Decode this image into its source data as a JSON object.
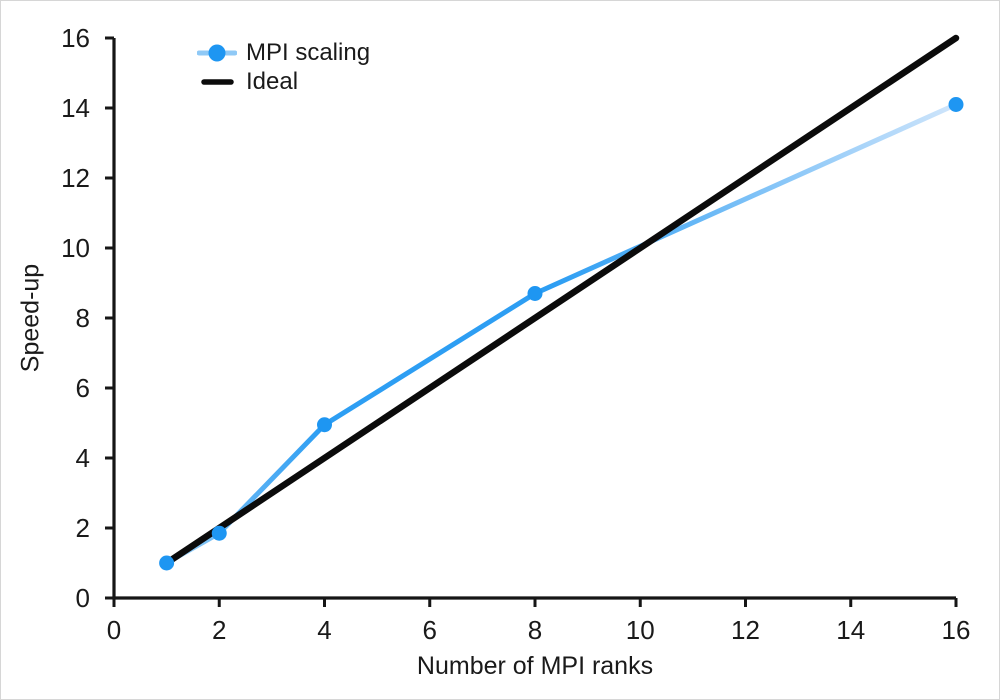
{
  "figure": {
    "background": "#ffffff",
    "border_color": "#d6d6d6"
  },
  "chart_data": {
    "type": "line",
    "title": "",
    "xlabel": "Number of MPI ranks",
    "ylabel": "Speed-up",
    "xlim": [
      0,
      16
    ],
    "ylim": [
      0,
      16
    ],
    "xticks": [
      0,
      2,
      4,
      6,
      8,
      10,
      12,
      14,
      16
    ],
    "yticks": [
      0,
      2,
      4,
      6,
      8,
      10,
      12,
      14,
      16
    ],
    "grid": false,
    "legend_position": "upper-left",
    "axis_color": "#161616",
    "tick_label_color": "#1a1a1a",
    "series": [
      {
        "name": "MPI scaling",
        "x": [
          1,
          2,
          4,
          8,
          16
        ],
        "y": [
          1.0,
          1.85,
          4.95,
          8.7,
          14.1
        ],
        "color": "#2d9ef3",
        "marker": "circle",
        "marker_color": "#1e96f2",
        "marker_radius": 7.5,
        "line_width": 5,
        "legend_line_color": "#8fc9f6",
        "gradient_stops": [
          {
            "offset": 0,
            "color": "#9fd2f7"
          },
          {
            "offset": 0.08,
            "color": "#69b8f4"
          },
          {
            "offset": 0.22,
            "color": "#2d9ef3"
          },
          {
            "offset": 0.52,
            "color": "#2d9ef3"
          },
          {
            "offset": 1,
            "color": "#cfe5fb"
          }
        ]
      },
      {
        "name": "Ideal",
        "x": [
          1,
          16
        ],
        "y": [
          1,
          16
        ],
        "color": "#0b0b0b",
        "marker": "none",
        "line_width": 6.5
      }
    ]
  }
}
